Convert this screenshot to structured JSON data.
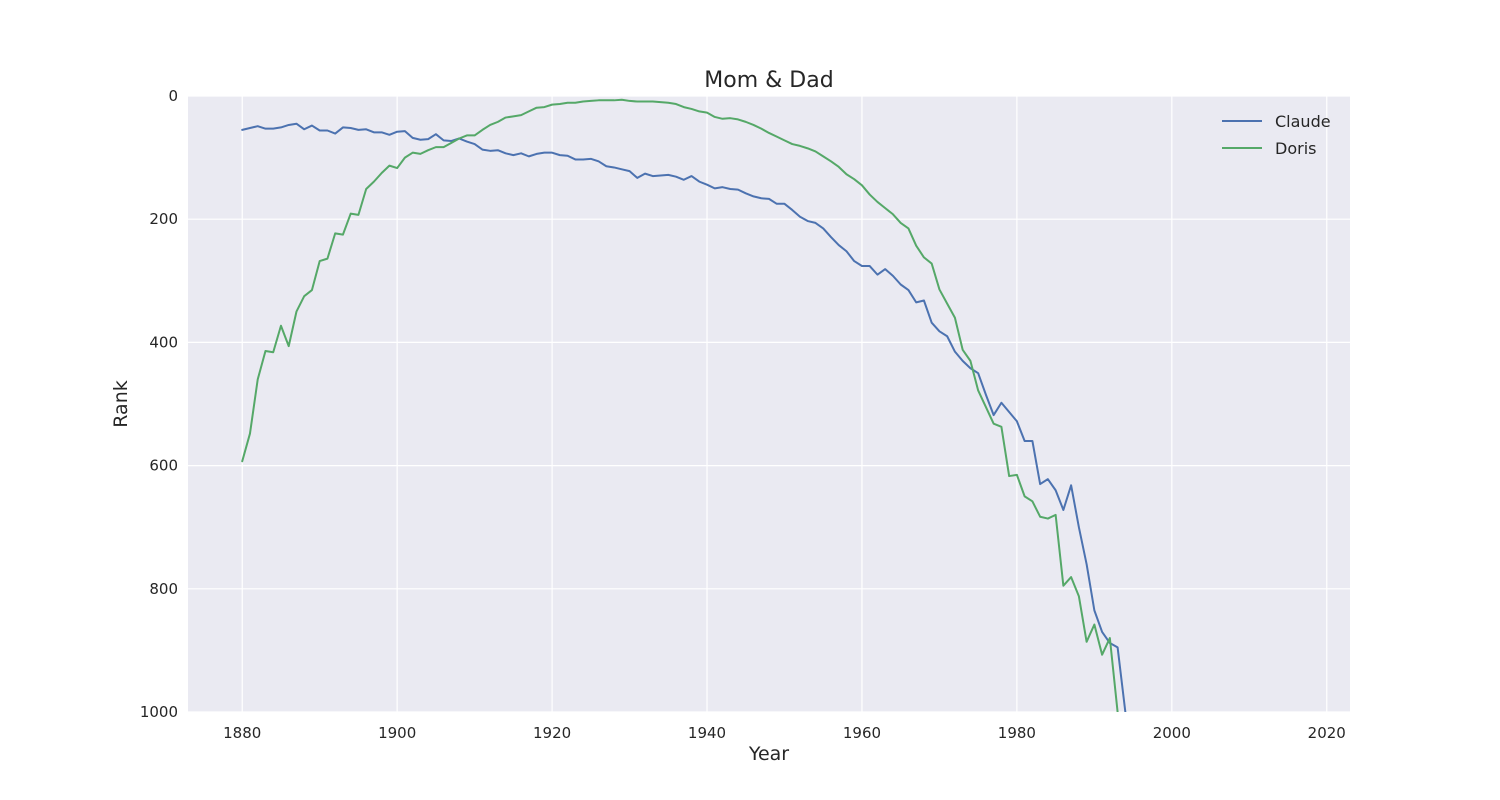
{
  "chart_data": {
    "type": "line",
    "title": "Mom & Dad",
    "xlabel": "Year",
    "ylabel": "Rank",
    "xlim": [
      1873,
      2023
    ],
    "ylim": [
      1000,
      0
    ],
    "y_inverted": true,
    "xticks": [
      1880,
      1900,
      1920,
      1940,
      1960,
      1980,
      2000,
      2020
    ],
    "yticks": [
      0,
      200,
      400,
      600,
      800,
      1000
    ],
    "grid": true,
    "background": "#eaeaf2",
    "legend": "top-right",
    "series": [
      {
        "name": "Claude",
        "color": "#4c72b0",
        "x": [
          1880,
          1881,
          1882,
          1883,
          1884,
          1885,
          1886,
          1887,
          1888,
          1889,
          1890,
          1891,
          1892,
          1893,
          1894,
          1895,
          1896,
          1897,
          1898,
          1899,
          1900,
          1901,
          1902,
          1903,
          1904,
          1905,
          1906,
          1907,
          1908,
          1909,
          1910,
          1911,
          1912,
          1913,
          1914,
          1915,
          1916,
          1917,
          1918,
          1919,
          1920,
          1921,
          1922,
          1923,
          1924,
          1925,
          1926,
          1927,
          1928,
          1929,
          1930,
          1931,
          1932,
          1933,
          1934,
          1935,
          1936,
          1937,
          1938,
          1939,
          1940,
          1941,
          1942,
          1943,
          1944,
          1945,
          1946,
          1947,
          1948,
          1949,
          1950,
          1951,
          1952,
          1953,
          1954,
          1955,
          1956,
          1957,
          1958,
          1959,
          1960,
          1961,
          1962,
          1963,
          1964,
          1965,
          1966,
          1967,
          1968,
          1969,
          1970,
          1971,
          1972,
          1973,
          1974,
          1975,
          1976,
          1977,
          1978,
          1979,
          1980,
          1981,
          1982,
          1983,
          1984,
          1985,
          1986,
          1987,
          1988,
          1989,
          1990,
          1991,
          1992,
          1993,
          1994
        ],
        "y": [
          55,
          52,
          49,
          53,
          53,
          51,
          47,
          45,
          54,
          48,
          56,
          56,
          61,
          51,
          52,
          55,
          54,
          59,
          59,
          63,
          58,
          57,
          68,
          71,
          70,
          62,
          72,
          73,
          69,
          74,
          78,
          87,
          89,
          88,
          93,
          96,
          93,
          98,
          94,
          92,
          92,
          96,
          97,
          103,
          103,
          102,
          106,
          114,
          116,
          119,
          122,
          133,
          126,
          130,
          129,
          128,
          131,
          136,
          130,
          139,
          144,
          150,
          148,
          151,
          152,
          158,
          163,
          166,
          167,
          175,
          175,
          185,
          196,
          203,
          206,
          215,
          229,
          242,
          252,
          268,
          276,
          276,
          290,
          281,
          292,
          306,
          315,
          335,
          332,
          368,
          382,
          390,
          415,
          430,
          442,
          450,
          485,
          518,
          498,
          513,
          528,
          560,
          560,
          630,
          622,
          640,
          672,
          632,
          700,
          760,
          835,
          870,
          888,
          895,
          1000
        ]
      },
      {
        "name": "Doris",
        "color": "#55a868",
        "x": [
          1880,
          1881,
          1882,
          1883,
          1884,
          1885,
          1886,
          1887,
          1888,
          1889,
          1890,
          1891,
          1892,
          1893,
          1894,
          1895,
          1896,
          1897,
          1898,
          1899,
          1900,
          1901,
          1902,
          1903,
          1904,
          1905,
          1906,
          1907,
          1908,
          1909,
          1910,
          1911,
          1912,
          1913,
          1914,
          1915,
          1916,
          1917,
          1918,
          1919,
          1920,
          1921,
          1922,
          1923,
          1924,
          1925,
          1926,
          1927,
          1928,
          1929,
          1930,
          1931,
          1932,
          1933,
          1934,
          1935,
          1936,
          1937,
          1938,
          1939,
          1940,
          1941,
          1942,
          1943,
          1944,
          1945,
          1946,
          1947,
          1948,
          1949,
          1950,
          1951,
          1952,
          1953,
          1954,
          1955,
          1956,
          1957,
          1958,
          1959,
          1960,
          1961,
          1962,
          1963,
          1964,
          1965,
          1966,
          1967,
          1968,
          1969,
          1970,
          1971,
          1972,
          1973,
          1974,
          1975,
          1976,
          1977,
          1978,
          1979,
          1980,
          1981,
          1982,
          1983,
          1984,
          1985,
          1986,
          1987,
          1988,
          1989,
          1990,
          1991,
          1992,
          1993
        ],
        "y": [
          593,
          548,
          460,
          414,
          416,
          373,
          406,
          350,
          325,
          315,
          268,
          264,
          223,
          225,
          191,
          193,
          151,
          139,
          125,
          113,
          117,
          100,
          92,
          94,
          88,
          83,
          83,
          76,
          69,
          64,
          64,
          55,
          47,
          42,
          35,
          33,
          31,
          25,
          19,
          18,
          14,
          13,
          11,
          11,
          9,
          8,
          7,
          7,
          7,
          6,
          8,
          9,
          9,
          9,
          10,
          11,
          13,
          18,
          21,
          25,
          27,
          34,
          37,
          36,
          38,
          42,
          47,
          53,
          60,
          66,
          72,
          78,
          81,
          85,
          90,
          98,
          106,
          115,
          127,
          135,
          145,
          160,
          172,
          182,
          192,
          206,
          215,
          243,
          262,
          272,
          314,
          337,
          360,
          412,
          430,
          478,
          505,
          532,
          537,
          617,
          615,
          650,
          658,
          683,
          686,
          680,
          795,
          781,
          812,
          886,
          858,
          907,
          880,
          1000
        ]
      }
    ]
  }
}
